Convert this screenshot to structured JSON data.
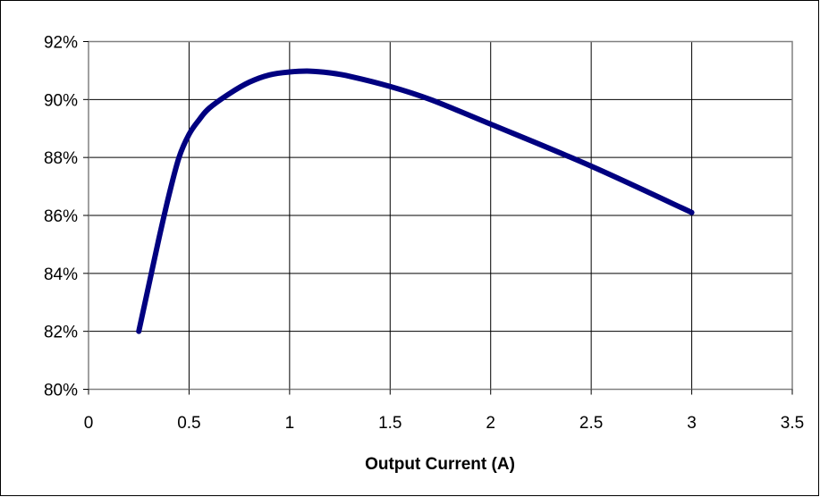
{
  "chart_data": {
    "type": "line",
    "title": "",
    "xlabel": "Output Current (A)",
    "ylabel": "",
    "xlim": [
      0,
      3.5
    ],
    "ylim": [
      80,
      92
    ],
    "x_ticks": [
      0,
      0.5,
      1,
      1.5,
      2,
      2.5,
      3,
      3.5
    ],
    "x_tick_labels": [
      "0",
      "0.5",
      "1",
      "1.5",
      "2",
      "2.5",
      "3",
      "3.5"
    ],
    "y_ticks": [
      80,
      82,
      84,
      86,
      88,
      90,
      92
    ],
    "y_tick_labels": [
      "80%",
      "82%",
      "84%",
      "86%",
      "88%",
      "90%",
      "92%"
    ],
    "grid": true,
    "legend": "none",
    "series": [
      {
        "color": "#000080",
        "x": [
          0.25,
          0.3,
          0.35,
          0.4,
          0.45,
          0.5,
          0.55,
          0.6,
          0.7,
          0.8,
          0.9,
          1.0,
          1.1,
          1.2,
          1.3,
          1.5,
          1.7,
          2.0,
          2.5,
          3.0
        ],
        "y": [
          82.0,
          83.6,
          85.2,
          86.7,
          88.0,
          88.8,
          89.3,
          89.7,
          90.2,
          90.6,
          90.85,
          90.95,
          90.98,
          90.92,
          90.8,
          90.45,
          90.0,
          89.15,
          87.7,
          86.1
        ]
      }
    ]
  }
}
